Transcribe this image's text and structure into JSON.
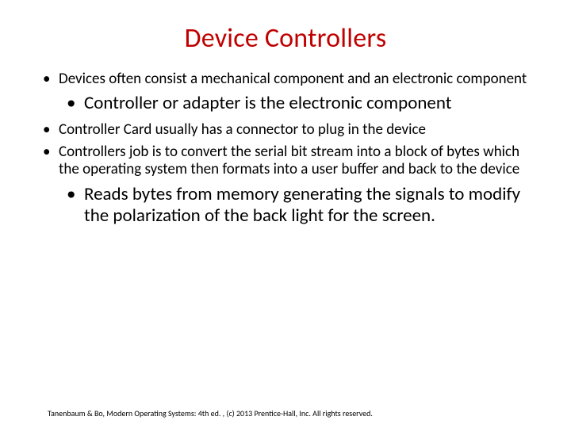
{
  "title": {
    "text": "Device Controllers",
    "color": "#c00000",
    "fontsize": 34,
    "fontweight": 400
  },
  "body": {
    "fontsize_outer": 19,
    "fontsize_inner": 23,
    "text_color": "#000000"
  },
  "bullets": {
    "b1": "Devices often consist a mechanical component and an electronic component",
    "b1_1": "Controller or adapter is the electronic component",
    "b2": "Controller Card usually has a connector to plug in the device",
    "b3": "Controllers job is to convert the serial bit stream into a block of bytes which the operating system then formats into a user buffer and back to the device",
    "b3_1": "Reads bytes from memory generating the signals to modify the polarization of the back light for the screen."
  },
  "footer": {
    "text": "Tanenbaum & Bo, Modern  Operating Systems: 4th ed. , (c) 2013 Prentice-Hall, Inc. All rights reserved.",
    "fontsize": 10
  },
  "background_color": "#ffffff"
}
